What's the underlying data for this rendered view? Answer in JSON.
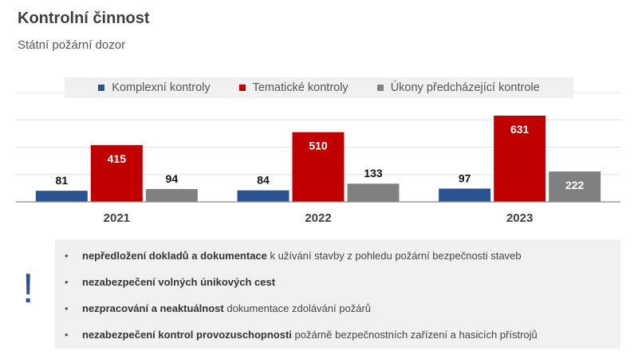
{
  "header": {
    "title": "Kontrolní činnost",
    "subtitle": "Státní požární dozor"
  },
  "chart_data": {
    "type": "bar",
    "categories": [
      "2021",
      "2022",
      "2023"
    ],
    "series": [
      {
        "name": "Komplexní kontroly",
        "values": [
          81,
          84,
          97
        ],
        "color": "#2a5490"
      },
      {
        "name": "Tematické kontroly",
        "values": [
          415,
          510,
          631
        ],
        "color": "#c00000"
      },
      {
        "name": "Úkony předcházející kontrole",
        "values": [
          94,
          133,
          222
        ],
        "color": "#808080"
      }
    ],
    "ylim": [
      0,
      800
    ],
    "grid": true,
    "legend": "top",
    "y_axis_labels_shown": false
  },
  "notes": {
    "icon": "exclamation-icon",
    "items": [
      {
        "bold": "nepředložení dokladů a dokumentace",
        "rest": " k užívání stavby z pohledu požární bezpečnosti staveb"
      },
      {
        "bold": "nezabezpečení volných únikových cest",
        "rest": ""
      },
      {
        "bold": "nezpracování a neaktuálnost",
        "rest": " dokumentace zdolávání požárů"
      },
      {
        "bold": "nezabezpečení kontrol provozuschopnosti",
        "rest": " požárně bezpečnostních zařízení a hasicích přístrojů"
      }
    ]
  }
}
